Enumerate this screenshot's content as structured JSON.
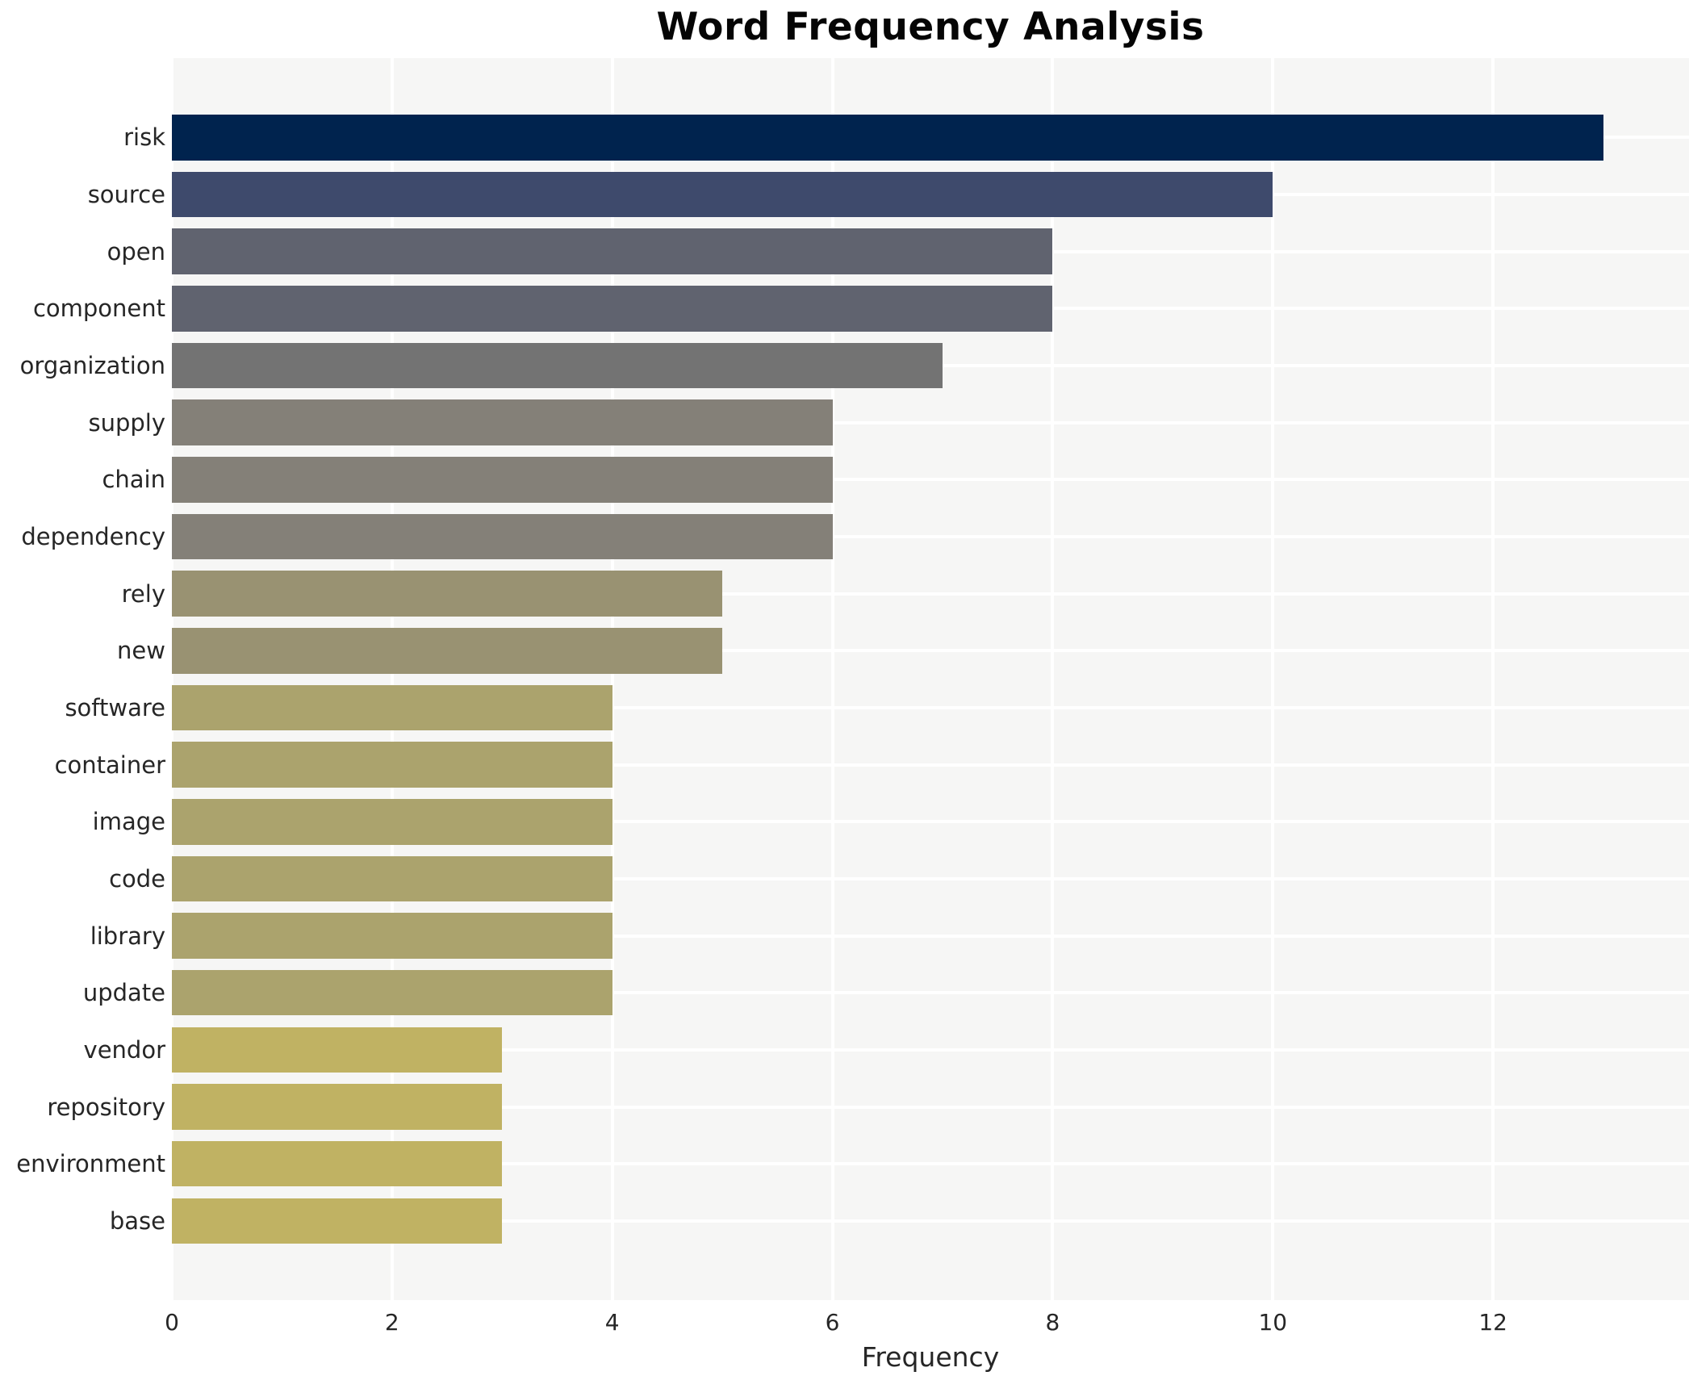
{
  "chart_data": {
    "type": "bar",
    "orientation": "horizontal",
    "title": "Word Frequency Analysis",
    "xlabel": "Frequency",
    "ylabel": "",
    "categories": [
      "risk",
      "source",
      "open",
      "component",
      "organization",
      "supply",
      "chain",
      "dependency",
      "rely",
      "new",
      "software",
      "container",
      "image",
      "code",
      "library",
      "update",
      "vendor",
      "repository",
      "environment",
      "base"
    ],
    "values": [
      13,
      10,
      8,
      8,
      7,
      6,
      6,
      6,
      5,
      5,
      4,
      4,
      4,
      4,
      4,
      4,
      3,
      3,
      3,
      3
    ],
    "bar_colors": [
      "#00234e",
      "#3e4a6c",
      "#60636f",
      "#60636f",
      "#737373",
      "#848078",
      "#848078",
      "#848078",
      "#999272",
      "#999272",
      "#aba36d",
      "#aba36d",
      "#aba36d",
      "#aba36d",
      "#aba36d",
      "#aba36d",
      "#c0b263",
      "#c0b263",
      "#c0b263",
      "#c0b263"
    ],
    "xticks": [
      0,
      2,
      4,
      6,
      8,
      10,
      12
    ],
    "xlim": [
      0,
      13.78
    ],
    "grid": "both",
    "legend_position": "none",
    "plot_background": "#f6f6f5",
    "gridline_color": "#ffffff",
    "text_color": "#262626",
    "title_color": "#050505"
  }
}
